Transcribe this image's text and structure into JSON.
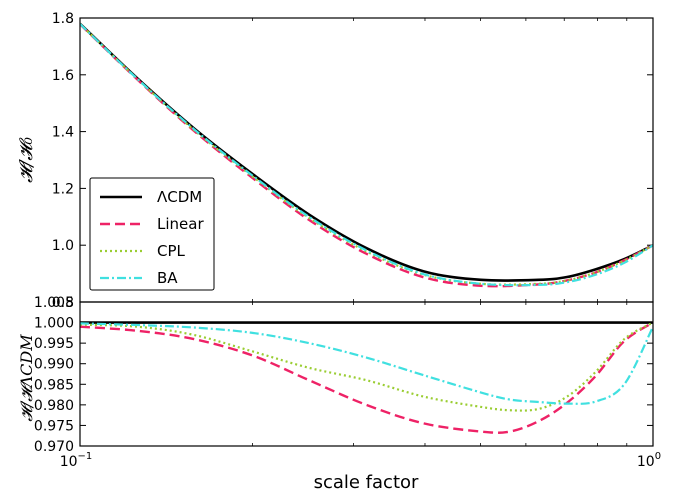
{
  "chart_data": [
    {
      "type": "line",
      "panel": "top",
      "ylabel": "𝓗/𝓗₀",
      "ylim": [
        0.8,
        1.8
      ],
      "yticks": [
        "0.8",
        "1.0",
        "1.2",
        "1.4",
        "1.6",
        "1.8"
      ],
      "ytick_values": [
        0.8,
        1.0,
        1.2,
        1.4,
        1.6,
        1.8
      ],
      "x": [
        0.1,
        0.126,
        0.158,
        0.2,
        0.251,
        0.316,
        0.398,
        0.501,
        0.631,
        0.708,
        0.794,
        0.891,
        1.0
      ],
      "series": [
        {
          "name": "ΛCDM",
          "color": "#000000",
          "values": [
            1.78,
            1.587,
            1.412,
            1.251,
            1.108,
            0.99,
            0.908,
            0.878,
            0.878,
            0.888,
            0.915,
            0.951,
            1.0
          ]
        },
        {
          "name": "Linear",
          "color": "#ee2266",
          "values": [
            1.778,
            1.583,
            1.403,
            1.237,
            1.089,
            0.97,
            0.887,
            0.857,
            0.862,
            0.876,
            0.904,
            0.947,
            1.0
          ]
        },
        {
          "name": "CPL",
          "color": "#9acd32",
          "values": [
            1.779,
            1.585,
            1.406,
            1.242,
            1.096,
            0.978,
            0.896,
            0.864,
            0.864,
            0.876,
            0.904,
            0.946,
            1.0
          ]
        },
        {
          "name": "BA",
          "color": "#40e0e0",
          "values": [
            1.779,
            1.585,
            1.409,
            1.245,
            1.1,
            0.982,
            0.898,
            0.864,
            0.86,
            0.87,
            0.896,
            0.938,
            1.0
          ]
        }
      ],
      "legend": {
        "placement": "lower-left",
        "entries": [
          "ΛCDM",
          "Linear",
          "CPL",
          "BA"
        ]
      }
    },
    {
      "type": "line",
      "panel": "bottom",
      "ylabel": "𝓗/𝓗ΛCDM",
      "xlabel": "scale factor",
      "xscale": "log",
      "xlim": [
        0.1,
        1.0
      ],
      "xticks": [
        {
          "base": "10",
          "exp": "−1"
        },
        {
          "base": "10",
          "exp": "0"
        }
      ],
      "xtick_values": [
        0.1,
        1.0
      ],
      "ylim": [
        0.97,
        1.005
      ],
      "yticks": [
        "0.970",
        "0.975",
        "0.980",
        "0.985",
        "0.990",
        "0.995",
        "1.000",
        "1.005"
      ],
      "ytick_values": [
        0.97,
        0.975,
        0.98,
        0.985,
        0.99,
        0.995,
        1.0,
        1.005
      ],
      "x": [
        0.1,
        0.126,
        0.158,
        0.2,
        0.251,
        0.316,
        0.398,
        0.501,
        0.562,
        0.631,
        0.708,
        0.794,
        0.891,
        1.0
      ],
      "series": [
        {
          "name": "ΛCDM",
          "color": "#000000",
          "values": [
            1.0,
            1.0,
            1.0,
            1.0,
            1.0,
            1.0,
            1.0,
            1.0,
            1.0,
            1.0,
            1.0,
            1.0,
            1.0,
            1.0
          ]
        },
        {
          "name": "Linear",
          "color": "#ee2266",
          "values": [
            0.999,
            0.998,
            0.996,
            0.992,
            0.986,
            0.98,
            0.9755,
            0.9735,
            0.9735,
            0.976,
            0.9805,
            0.987,
            0.9955,
            1.0
          ]
        },
        {
          "name": "CPL",
          "color": "#9acd32",
          "values": [
            0.9995,
            0.999,
            0.997,
            0.993,
            0.989,
            0.986,
            0.982,
            0.9795,
            0.9787,
            0.979,
            0.982,
            0.988,
            0.996,
            1.0
          ]
        },
        {
          "name": "BA",
          "color": "#40e0e0",
          "values": [
            0.9998,
            0.9994,
            0.9988,
            0.9975,
            0.995,
            0.9915,
            0.9872,
            0.983,
            0.9813,
            0.9807,
            0.9803,
            0.9808,
            0.985,
            0.999
          ]
        }
      ]
    }
  ]
}
